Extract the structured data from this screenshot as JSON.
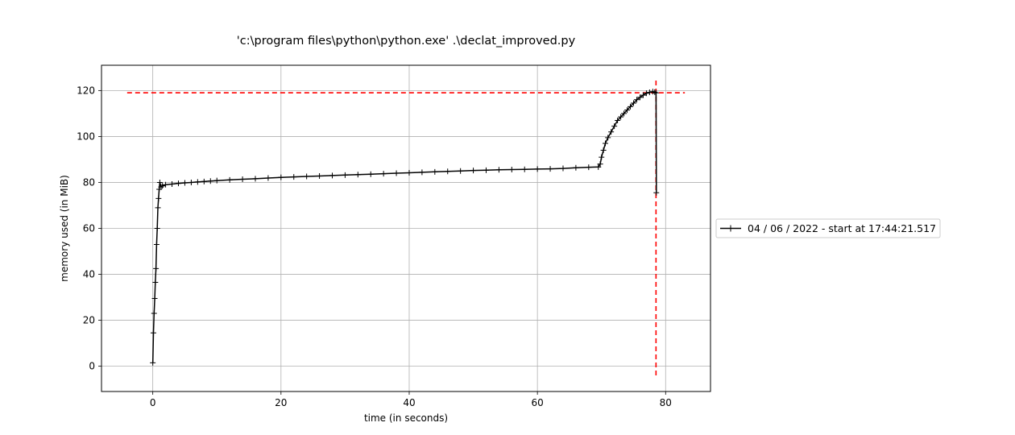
{
  "chart_data": {
    "type": "line",
    "title": "'c:\\program files\\python\\python.exe' .\\declat_improved.py",
    "xlabel": "time (in seconds)",
    "ylabel": "memory used (in MiB)",
    "xlim": [
      -8,
      87
    ],
    "ylim": [
      -11,
      131
    ],
    "xticks": [
      0,
      20,
      40,
      60,
      80
    ],
    "yticks": [
      0,
      20,
      40,
      60,
      80,
      100,
      120
    ],
    "grid": true,
    "legend_position": "right, outside plot",
    "series": [
      {
        "name": "04 / 06 / 2022 - start at 17:44:21.517",
        "color": "#000000",
        "marker": "+",
        "x": [
          0.0,
          0.1,
          0.2,
          0.3,
          0.4,
          0.5,
          0.6,
          0.7,
          0.8,
          0.9,
          1.0,
          1.1,
          1.3,
          1.5,
          2,
          3,
          4,
          5,
          6,
          7,
          8,
          9,
          10,
          12,
          14,
          16,
          18,
          20,
          22,
          24,
          26,
          28,
          30,
          32,
          34,
          36,
          38,
          40,
          42,
          44,
          46,
          48,
          50,
          52,
          54,
          56,
          58,
          60,
          62,
          64,
          66,
          68,
          69.5,
          69.8,
          70.0,
          70.3,
          70.6,
          71.0,
          71.5,
          72.0,
          72.5,
          73.0,
          73.5,
          74.0,
          74.5,
          75.0,
          75.5,
          76.0,
          76.5,
          77.0,
          77.5,
          78.0,
          78.3,
          78.5,
          78.55
        ],
        "y": [
          1.5,
          14.5,
          23,
          29.5,
          36.5,
          42.5,
          53,
          60,
          69,
          73,
          77,
          80,
          78,
          78.5,
          79,
          79.3,
          79.6,
          79.8,
          80,
          80.2,
          80.4,
          80.6,
          80.8,
          81.1,
          81.4,
          81.6,
          81.9,
          82.2,
          82.4,
          82.6,
          82.8,
          83,
          83.2,
          83.4,
          83.6,
          83.8,
          84,
          84.2,
          84.4,
          84.6,
          84.8,
          85,
          85.2,
          85.3,
          85.5,
          85.6,
          85.7,
          85.8,
          85.9,
          86.1,
          86.4,
          86.6,
          86.7,
          88,
          91,
          94,
          97,
          99.5,
          102,
          104.5,
          107,
          108.5,
          110,
          111.5,
          113,
          114.5,
          116,
          117,
          118,
          118.8,
          119.2,
          119.5,
          119.3,
          119,
          75.5
        ]
      }
    ],
    "reference_lines": [
      {
        "orientation": "horizontal",
        "y": 119,
        "x_from": -4,
        "x_to": 83,
        "color": "#ff0000",
        "style": "dashed"
      },
      {
        "orientation": "vertical",
        "x": 78.5,
        "y_from": -4,
        "y_to": 125,
        "color": "#ff0000",
        "style": "dashed"
      }
    ],
    "colors": {
      "grid": "#b0b0b0",
      "axes": "#000000",
      "series": "#000000",
      "reference": "#ff0000"
    }
  }
}
